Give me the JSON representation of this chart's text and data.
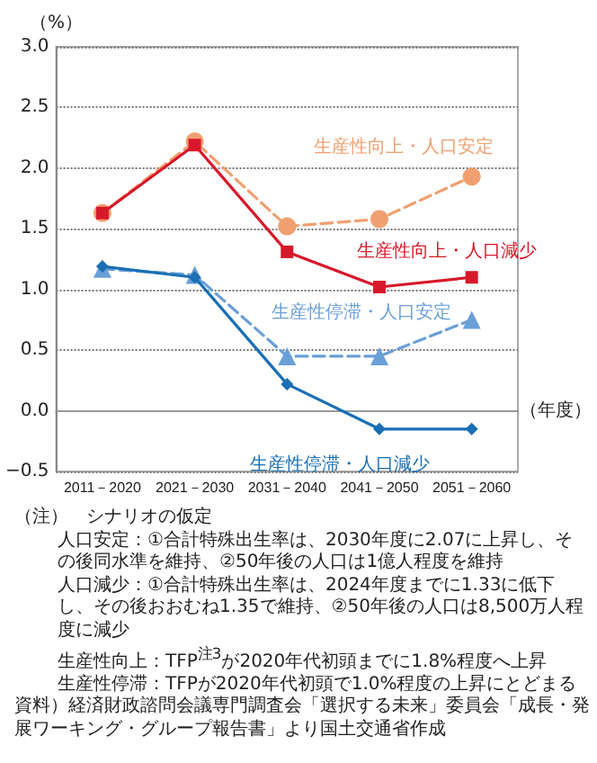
{
  "chart_data": {
    "type": "line",
    "ylabel": "（%）",
    "xlabel": "（年度）",
    "categories": [
      "2011－2020",
      "2021－2030",
      "2031－2040",
      "2041－2050",
      "2051－2060"
    ],
    "series": [
      {
        "name": "生産性向上・人口安定",
        "color": "#f0a070",
        "marker": "circle",
        "line_style": "dashed",
        "values": [
          1.63,
          2.22,
          1.52,
          1.58,
          1.93
        ]
      },
      {
        "name": "生産性向上・人口減少",
        "color": "#d7182a",
        "marker": "square",
        "line_style": "solid",
        "values": [
          1.63,
          2.19,
          1.31,
          1.02,
          1.1
        ]
      },
      {
        "name": "生産性停滞・人口安定",
        "color": "#6a9fd8",
        "marker": "triangle",
        "line_style": "dashed",
        "values": [
          1.17,
          1.12,
          0.45,
          0.45,
          0.75
        ]
      },
      {
        "name": "生産性停滞・人口減少",
        "color": "#1a6fb5",
        "marker": "diamond",
        "line_style": "solid",
        "values": [
          1.19,
          1.1,
          0.22,
          -0.15,
          -0.15
        ]
      }
    ],
    "ylim": [
      -0.5,
      3.0
    ],
    "yticks": [
      {
        "value": -0.5,
        "label": "−0.5"
      },
      {
        "value": 0,
        "label": "0.0"
      },
      {
        "value": 0.5,
        "label": "0.5"
      },
      {
        "value": 1,
        "label": "1.0"
      },
      {
        "value": 1.5,
        "label": "1.5"
      },
      {
        "value": 2,
        "label": "2.0"
      },
      {
        "value": 2.5,
        "label": "2.5"
      },
      {
        "value": 3,
        "label": "3.0"
      }
    ],
    "grid": "y",
    "legend": false,
    "ref_lines": [
      {
        "axis": "y",
        "value": 0,
        "color": "#999999",
        "line_style": "solid"
      }
    ],
    "annotations": [
      "（注）　シナリオの仮定",
      "人口安定：①合計特殊出生率は、2030年度に2.07に上昇し、その後同水準を維持、②50年後の人口は1億人程度を維持",
      "人口減少：①合計特殊出生率は、2024年度までに1.33に低下し、その後おおむね1.35で維持、②50年後の人口は8,500万人程度に減少",
      "生産性向上：TFP$^{注3}$が2020年代初頭までに1.8%程度へ上昇",
      "生産性停滞：TFPが2020年代初頭で1.0%程度の上昇にとどまる",
      "資料）経済財政諮問会議専門調査会「選択する未来」委員会「成長・発展ワーキング・グループ報告書」より国土交通省作成"
    ]
  }
}
